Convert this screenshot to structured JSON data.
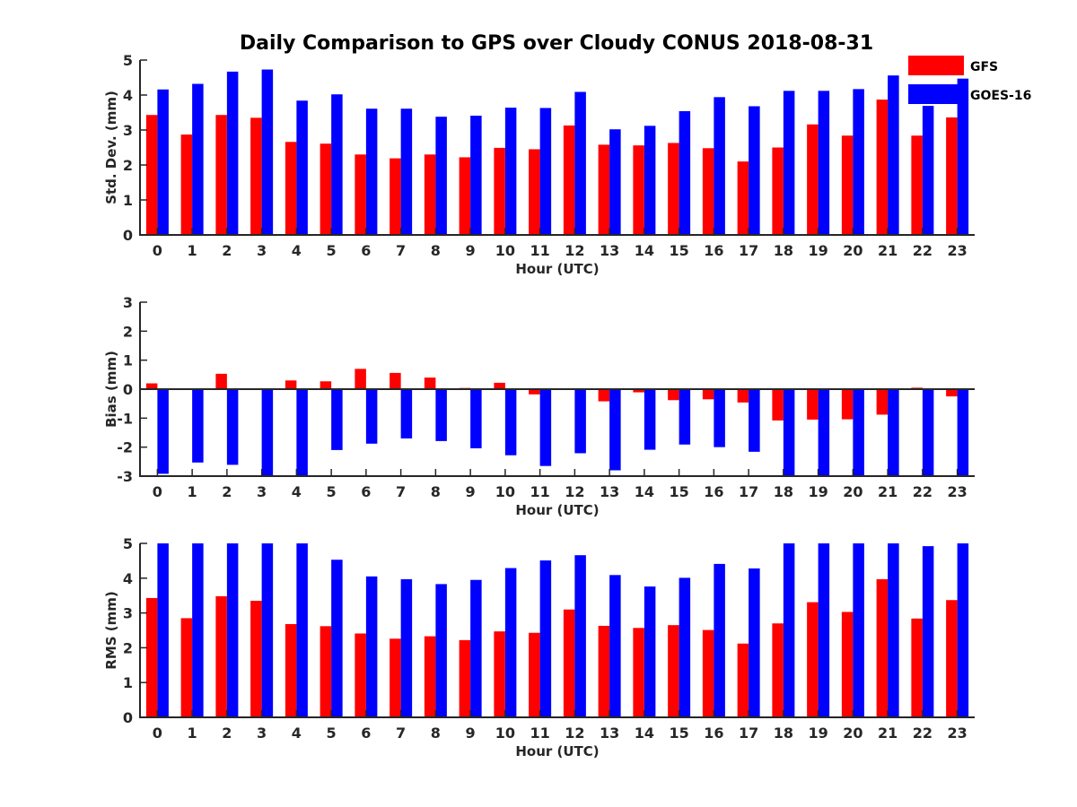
{
  "title": "Daily Comparison to GPS over Cloudy CONUS 2018-08-31",
  "legend": [
    {
      "name": "GFS",
      "color": "#ff0000"
    },
    {
      "name": "GOES-16",
      "color": "#0000ff"
    }
  ],
  "chart_data": [
    {
      "type": "bar",
      "title": "Daily Comparison to GPS over Cloudy CONUS 2018-08-31",
      "xlabel": "Hour (UTC)",
      "ylabel": "Std. Dev. (mm)",
      "ylim": [
        0,
        5
      ],
      "yticks": [
        "0",
        "1",
        "2",
        "3",
        "4",
        "5"
      ],
      "categories": [
        "0",
        "1",
        "2",
        "3",
        "4",
        "5",
        "6",
        "7",
        "8",
        "9",
        "10",
        "11",
        "12",
        "13",
        "14",
        "15",
        "16",
        "17",
        "18",
        "19",
        "20",
        "21",
        "22",
        "23"
      ],
      "series": [
        {
          "name": "GFS",
          "color": "#ff0000",
          "values": [
            3.43,
            2.87,
            3.43,
            3.35,
            2.66,
            2.61,
            2.3,
            2.19,
            2.3,
            2.22,
            2.49,
            2.45,
            3.13,
            2.58,
            2.56,
            2.63,
            2.48,
            2.1,
            2.5,
            3.16,
            2.84,
            3.87,
            2.84,
            3.36
          ]
        },
        {
          "name": "GOES-16",
          "color": "#0000ff",
          "values": [
            4.16,
            4.32,
            4.67,
            4.73,
            3.84,
            4.02,
            3.61,
            3.61,
            3.38,
            3.41,
            3.64,
            3.63,
            4.09,
            3.02,
            3.12,
            3.54,
            3.94,
            3.68,
            4.12,
            4.12,
            4.17,
            4.56,
            3.69,
            4.47
          ]
        }
      ],
      "legend_position": "top-right",
      "grid": false
    },
    {
      "type": "bar",
      "xlabel": "Hour (UTC)",
      "ylabel": "Bias (mm)",
      "ylim": [
        -3,
        3
      ],
      "yticks": [
        "-3",
        "-2",
        "-1",
        "0",
        "1",
        "2",
        "3"
      ],
      "categories": [
        "0",
        "1",
        "2",
        "3",
        "4",
        "5",
        "6",
        "7",
        "8",
        "9",
        "10",
        "11",
        "12",
        "13",
        "14",
        "15",
        "16",
        "17",
        "18",
        "19",
        "20",
        "21",
        "22",
        "23"
      ],
      "series": [
        {
          "name": "GFS",
          "color": "#ff0000",
          "values": [
            0.2,
            0.0,
            0.53,
            0.0,
            0.3,
            0.27,
            0.7,
            0.56,
            0.4,
            0.04,
            0.22,
            -0.18,
            -0.03,
            -0.42,
            -0.11,
            -0.38,
            -0.35,
            -0.46,
            -1.08,
            -1.05,
            -1.04,
            -0.88,
            0.05,
            -0.25
          ]
        },
        {
          "name": "GOES-16",
          "color": "#0000ff",
          "values": [
            -2.92,
            -2.53,
            -2.61,
            -3.0,
            -3.0,
            -2.1,
            -1.88,
            -1.7,
            -1.79,
            -2.04,
            -2.28,
            -2.65,
            -2.21,
            -2.8,
            -2.09,
            -1.91,
            -2.0,
            -2.16,
            -3.0,
            -3.0,
            -3.0,
            -3.0,
            -3.0,
            -3.0
          ]
        }
      ],
      "grid": false
    },
    {
      "type": "bar",
      "xlabel": "Hour (UTC)",
      "ylabel": "RMS (mm)",
      "ylim": [
        0,
        5
      ],
      "yticks": [
        "0",
        "1",
        "2",
        "3",
        "4",
        "5"
      ],
      "categories": [
        "0",
        "1",
        "2",
        "3",
        "4",
        "5",
        "6",
        "7",
        "8",
        "9",
        "10",
        "11",
        "12",
        "13",
        "14",
        "15",
        "16",
        "17",
        "18",
        "19",
        "20",
        "21",
        "22",
        "23"
      ],
      "series": [
        {
          "name": "GFS",
          "color": "#ff0000",
          "values": [
            3.43,
            2.85,
            3.48,
            3.35,
            2.68,
            2.62,
            2.41,
            2.26,
            2.33,
            2.22,
            2.47,
            2.43,
            3.1,
            2.63,
            2.57,
            2.65,
            2.51,
            2.12,
            2.7,
            3.31,
            3.03,
            3.97,
            2.84,
            3.37
          ]
        },
        {
          "name": "GOES-16",
          "color": "#0000ff",
          "values": [
            5.0,
            5.0,
            5.0,
            5.0,
            5.0,
            4.53,
            4.05,
            3.97,
            3.83,
            3.95,
            4.29,
            4.51,
            4.66,
            4.09,
            3.76,
            4.01,
            4.41,
            4.28,
            5.0,
            5.0,
            5.0,
            5.0,
            4.92,
            5.0
          ]
        }
      ],
      "grid": false
    }
  ]
}
